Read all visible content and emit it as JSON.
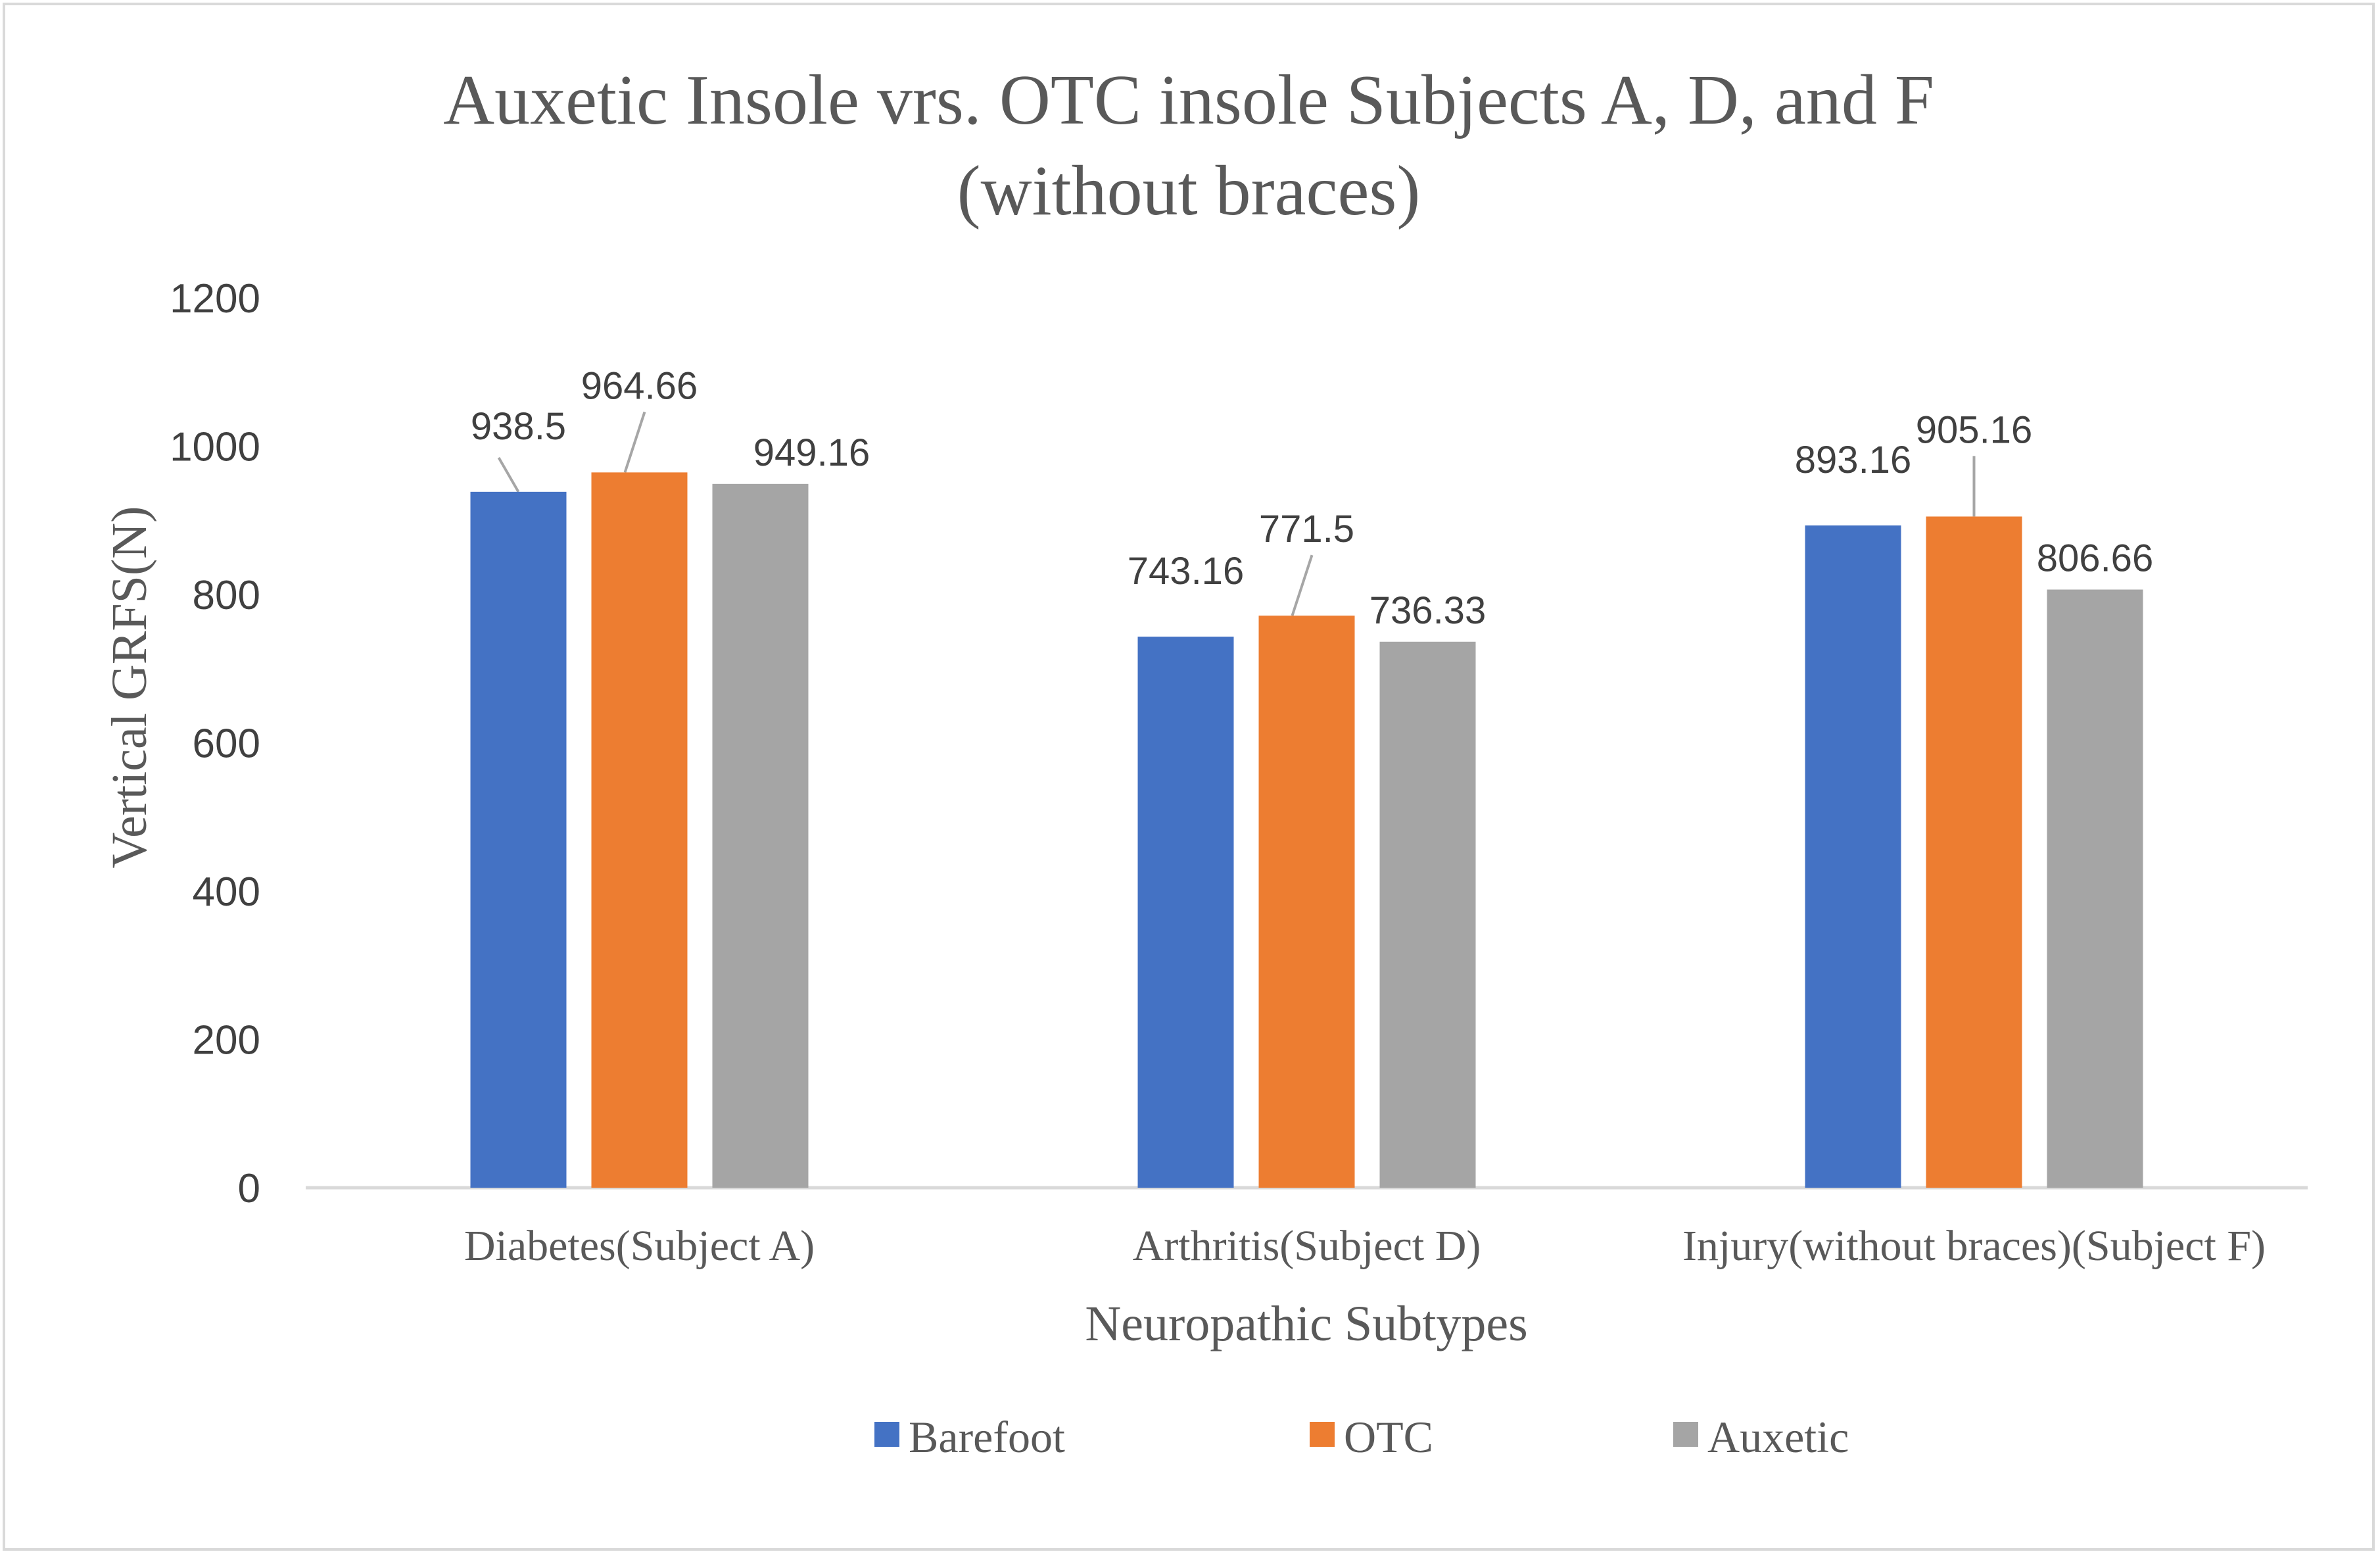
{
  "chart_data": {
    "type": "bar",
    "title": "Auxetic Insole vrs. OTC insole Subjects A, D, and F (without braces)",
    "title_lines": [
      "Auxetic Insole vrs. OTC insole Subjects A, D, and F",
      "(without braces)"
    ],
    "xlabel": "Neuropathic Subtypes",
    "ylabel": "Vertical GRFS(N)",
    "categories": [
      "Diabetes(Subject A)",
      "Arthritis(Subject D)",
      "Injury(without braces)(Subject F)"
    ],
    "series": [
      {
        "name": "Barefoot",
        "color": "#4472c4",
        "values": [
          938.5,
          743.16,
          893.16
        ],
        "labels": [
          "938.5",
          "743.16",
          "893.16"
        ]
      },
      {
        "name": "OTC",
        "color": "#ed7d31",
        "values": [
          964.66,
          771.5,
          905.16
        ],
        "labels": [
          "964.66",
          "771.5",
          "905.16"
        ]
      },
      {
        "name": "Auxetic",
        "color": "#a5a5a5",
        "values": [
          949.16,
          736.33,
          806.66
        ],
        "labels": [
          "949.16",
          "736.33",
          "806.66"
        ]
      }
    ],
    "ylim": [
      0,
      1200
    ],
    "yticks": [
      "0",
      "200",
      "400",
      "600",
      "800",
      "1000",
      "1200"
    ],
    "grid": false,
    "legend_position": "bottom"
  }
}
